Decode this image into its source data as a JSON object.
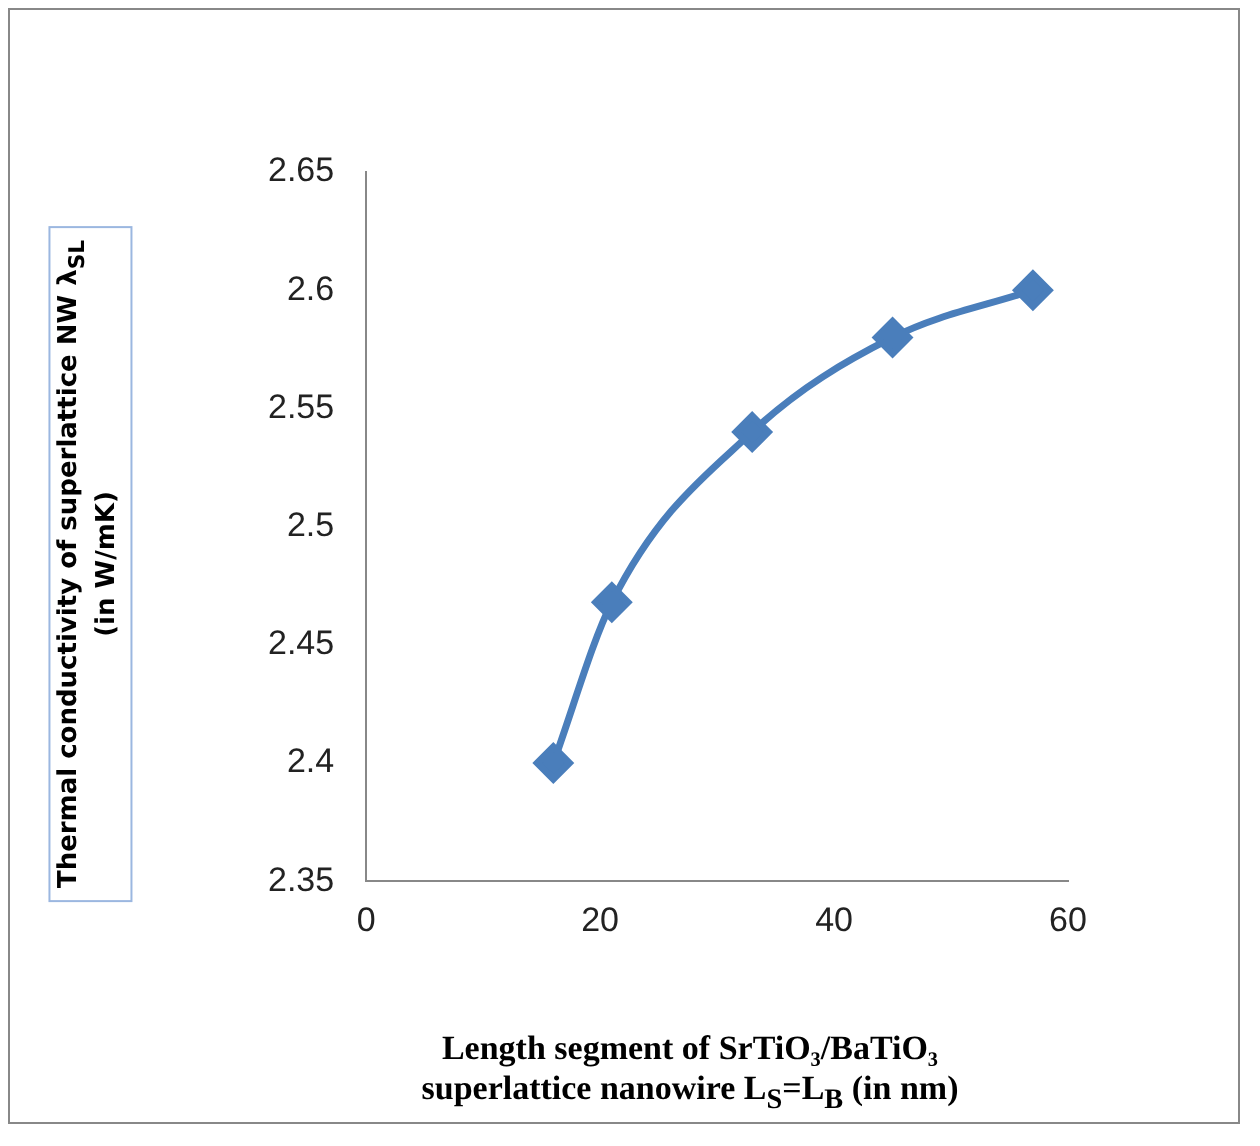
{
  "chart_data": {
    "type": "line",
    "xlabel": "Length segment of SrTiO₃/BaTiO₃\nsuperlattice nanowire L$_{S}$=L$_{B}$ (in nm)",
    "ylabel": "Thermal conductivity of superlattice NW λ$_{SL}$\n(in W/mK)",
    "x": [
      16,
      21,
      33,
      45,
      57
    ],
    "series": [
      {
        "color": "#4a7ebb",
        "values": [
          2.4,
          2.468,
          2.54,
          2.58,
          2.6
        ]
      }
    ],
    "xlim": [
      0,
      60
    ],
    "xticks": [
      0,
      20,
      40,
      60
    ],
    "ylim": [
      2.35,
      2.65
    ],
    "yticks": [
      2.35,
      2.4,
      2.45,
      2.5,
      2.55,
      2.6,
      2.65
    ],
    "grid": false,
    "legend": false,
    "marker": "diamond",
    "line_style": "solid"
  }
}
